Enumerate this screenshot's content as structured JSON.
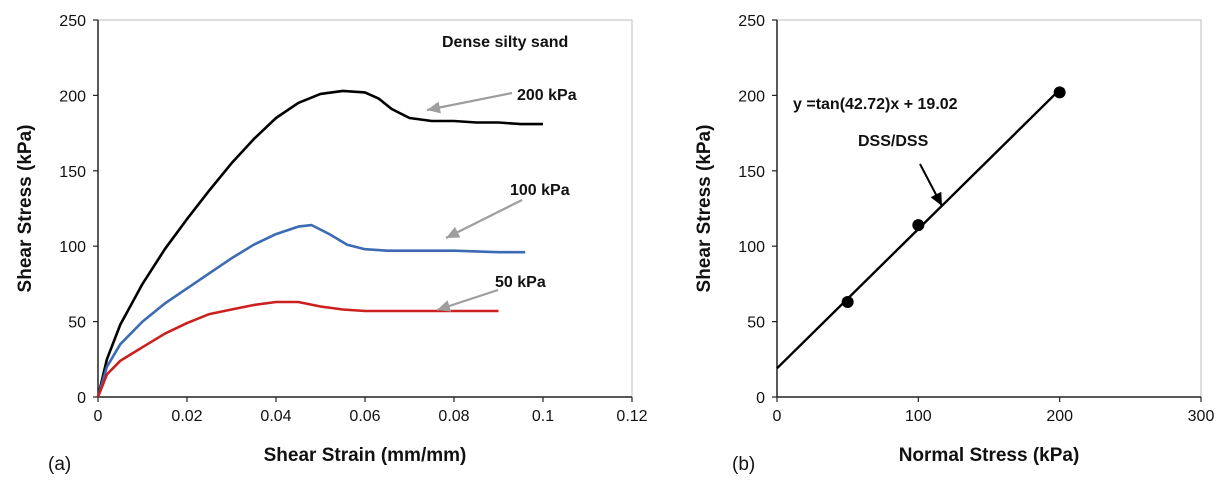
{
  "chart_data": [
    {
      "type": "line",
      "panel_label": "(a)",
      "xlabel": "Shear Strain (mm/mm)",
      "ylabel": "Shear Stress (kPa)",
      "xlim": [
        0,
        0.12
      ],
      "ylim": [
        0,
        250
      ],
      "xticks": [
        "0",
        "0.02",
        "0.04",
        "0.06",
        "0.08",
        "0.1",
        "0.12"
      ],
      "yticks": [
        "0",
        "50",
        "100",
        "150",
        "200",
        "250"
      ],
      "grid": false,
      "annotations": [
        "Dense silty sand"
      ],
      "series": [
        {
          "name": "200 kPa",
          "color": "#000000",
          "x": [
            0,
            0.002,
            0.005,
            0.01,
            0.015,
            0.02,
            0.025,
            0.03,
            0.035,
            0.04,
            0.045,
            0.05,
            0.055,
            0.06,
            0.063,
            0.066,
            0.07,
            0.075,
            0.08,
            0.085,
            0.09,
            0.095,
            0.1
          ],
          "values": [
            0,
            25,
            48,
            75,
            98,
            118,
            137,
            155,
            171,
            185,
            195,
            201,
            203,
            202,
            198,
            191,
            185,
            183,
            183,
            182,
            182,
            181,
            181
          ]
        },
        {
          "name": "100 kPa",
          "color": "#3d6bb3",
          "x": [
            0,
            0.002,
            0.005,
            0.01,
            0.015,
            0.02,
            0.025,
            0.03,
            0.035,
            0.04,
            0.045,
            0.048,
            0.052,
            0.056,
            0.06,
            0.065,
            0.07,
            0.08,
            0.09,
            0.096
          ],
          "values": [
            0,
            20,
            35,
            50,
            62,
            72,
            82,
            92,
            101,
            108,
            113,
            114,
            108,
            101,
            98,
            97,
            97,
            97,
            96,
            96
          ]
        },
        {
          "name": "50 kPa",
          "color": "#cc1f1f",
          "x": [
            0,
            0.002,
            0.005,
            0.01,
            0.015,
            0.02,
            0.025,
            0.03,
            0.035,
            0.04,
            0.045,
            0.05,
            0.055,
            0.06,
            0.065,
            0.07,
            0.08,
            0.09
          ],
          "values": [
            0,
            15,
            24,
            33,
            42,
            49,
            55,
            58,
            61,
            63,
            63,
            60,
            58,
            57,
            57,
            57,
            57,
            57
          ]
        }
      ]
    },
    {
      "type": "scatter",
      "panel_label": "(b)",
      "xlabel": "Normal Stress (kPa)",
      "ylabel": "Shear Stress (kPa)",
      "xlim": [
        0,
        300
      ],
      "ylim": [
        0,
        250
      ],
      "xticks": [
        "0",
        "100",
        "200",
        "300"
      ],
      "yticks": [
        "0",
        "50",
        "100",
        "150",
        "200",
        "250"
      ],
      "grid": false,
      "equation": "y =tan(42.72)x + 19.02",
      "fit_label": "DSS/DSS",
      "fit": {
        "slope": 0.9238,
        "intercept": 19.02,
        "x_range": [
          0,
          200
        ]
      },
      "points": {
        "x": [
          50,
          100,
          200
        ],
        "y": [
          63,
          114,
          202
        ]
      }
    }
  ]
}
